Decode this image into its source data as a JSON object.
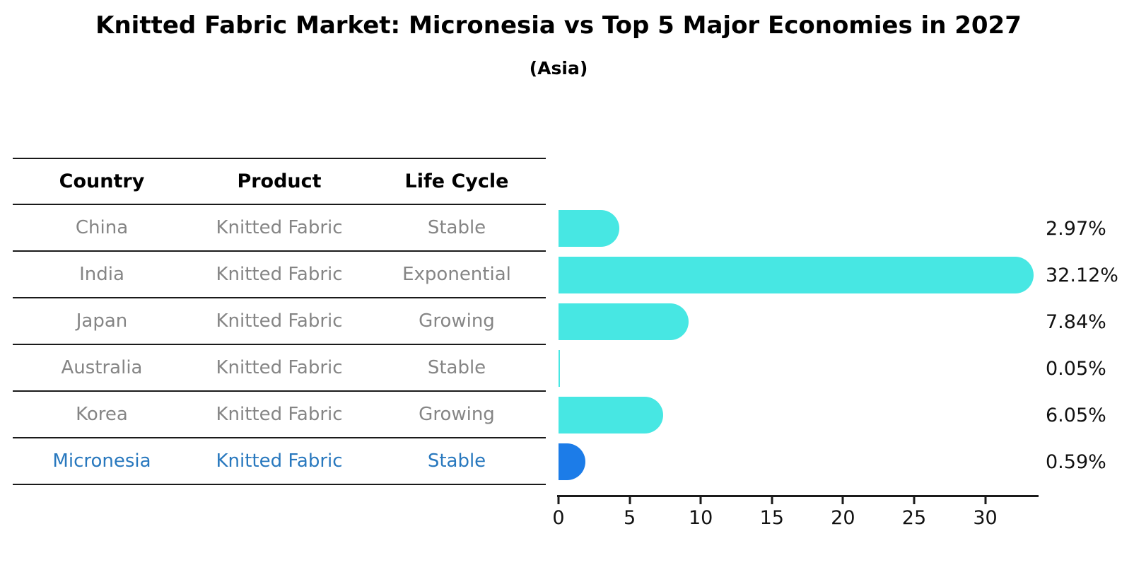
{
  "title": "Knitted Fabric Market: Micronesia vs Top 5 Major Economies in 2027",
  "subtitle": "(Asia)",
  "table": {
    "headers": [
      "Country",
      "Product",
      "Life Cycle"
    ],
    "rows": [
      {
        "country": "China",
        "product": "Knitted Fabric",
        "life_cycle": "Stable"
      },
      {
        "country": "India",
        "product": "Knitted Fabric",
        "life_cycle": "Exponential"
      },
      {
        "country": "Japan",
        "product": "Knitted Fabric",
        "life_cycle": "Growing"
      },
      {
        "country": "Australia",
        "product": "Knitted Fabric",
        "life_cycle": "Stable"
      },
      {
        "country": "Korea",
        "product": "Knitted Fabric",
        "life_cycle": "Growing"
      },
      {
        "country": "Micronesia",
        "product": "Knitted Fabric",
        "life_cycle": "Stable"
      }
    ],
    "highlight_row": "Micronesia"
  },
  "chart_data": {
    "type": "bar",
    "orientation": "horizontal",
    "title": "Knitted Fabric Market: Micronesia vs Top 5 Major Economies in 2027",
    "subtitle": "(Asia)",
    "categories": [
      "China",
      "India",
      "Japan",
      "Australia",
      "Korea",
      "Micronesia"
    ],
    "values": [
      2.97,
      32.12,
      7.84,
      0.05,
      6.05,
      0.59
    ],
    "value_labels": [
      "2.97%",
      "32.12%",
      "7.84%",
      "0.05%",
      "6.05%",
      "0.59%"
    ],
    "x_ticks": [
      0,
      5,
      10,
      15,
      20,
      25,
      30
    ],
    "x_tick_labels": [
      "0",
      "5",
      "10",
      "15",
      "20",
      "25",
      "30"
    ],
    "xlim": [
      0,
      33.7
    ],
    "xlabel": "",
    "ylabel": "",
    "grid": false,
    "legend": false,
    "bar_color": "#47e7e3",
    "highlight_color": "#1c7ce8",
    "highlight_index": 5
  },
  "colors": {
    "background": "#ffffff",
    "header_text": "#000000",
    "row_text": "#858585",
    "highlight_text": "#2878be",
    "value_label_text": "#111111",
    "axis_line": "#1a1a1a"
  }
}
